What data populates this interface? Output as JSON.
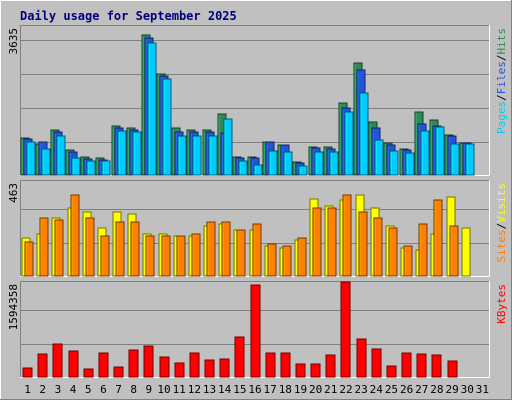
{
  "chart_data": [
    {
      "type": "bar",
      "title": "Daily usage for September 2025",
      "panel": "top",
      "categories": [
        "1",
        "2",
        "3",
        "4",
        "5",
        "6",
        "7",
        "8",
        "9",
        "10",
        "11",
        "12",
        "13",
        "14",
        "15",
        "16",
        "17",
        "18",
        "19",
        "20",
        "21",
        "22",
        "23",
        "24",
        "25",
        "26",
        "27",
        "28",
        "29",
        "30",
        "31"
      ],
      "ymax_label": "3635",
      "ylim": [
        0,
        3635
      ],
      "legend_right": [
        {
          "text": "Pages",
          "color": "#00ccff"
        },
        {
          "text": "Files",
          "color": "#2255dd"
        },
        {
          "text": "Hits",
          "color": "#2e8b57"
        }
      ],
      "series": [
        {
          "name": "Hits",
          "color": "#2e8b57",
          "values": [
            910,
            760,
            1130,
            610,
            450,
            430,
            1220,
            1180,
            3480,
            2520,
            1170,
            1130,
            1130,
            1530,
            450,
            450,
            830,
            740,
            330,
            690,
            690,
            1800,
            2780,
            1330,
            790,
            640,
            1560,
            1370,
            1000,
            790,
            0
          ]
        },
        {
          "name": "Files",
          "color": "#2255dd",
          "values": [
            890,
            810,
            1070,
            580,
            410,
            380,
            1180,
            1130,
            3420,
            2460,
            1070,
            1060,
            1060,
            1040,
            420,
            430,
            820,
            740,
            290,
            670,
            640,
            1670,
            2610,
            1170,
            750,
            620,
            1260,
            1220,
            980,
            790,
            0
          ]
        },
        {
          "name": "Pages",
          "color": "#00ccff",
          "values": [
            830,
            650,
            980,
            420,
            360,
            350,
            1090,
            1070,
            3280,
            2400,
            980,
            980,
            980,
            1400,
            360,
            260,
            590,
            570,
            220,
            580,
            580,
            1580,
            2030,
            870,
            600,
            550,
            1100,
            1200,
            770,
            760,
            0
          ]
        }
      ]
    },
    {
      "type": "bar",
      "panel": "middle",
      "categories": [
        "1",
        "2",
        "3",
        "4",
        "5",
        "6",
        "7",
        "8",
        "9",
        "10",
        "11",
        "12",
        "13",
        "14",
        "15",
        "16",
        "17",
        "18",
        "19",
        "20",
        "21",
        "22",
        "23",
        "24",
        "25",
        "26",
        "27",
        "28",
        "29",
        "30",
        "31"
      ],
      "ymax_label": "463",
      "ylim": [
        0,
        463
      ],
      "legend_right": [
        {
          "text": "Sites",
          "color": "#ff8000"
        },
        {
          "text": "Visits",
          "color": "#ffff00"
        }
      ],
      "series": [
        {
          "name": "Visits",
          "color": "#ffff00",
          "values": [
            190,
            210,
            290,
            340,
            320,
            240,
            320,
            310,
            210,
            210,
            200,
            200,
            250,
            260,
            230,
            230,
            150,
            140,
            180,
            390,
            350,
            380,
            410,
            340,
            250,
            140,
            130,
            210,
            400,
            240,
            0
          ]
        },
        {
          "name": "Sites",
          "color": "#ff8000",
          "values": [
            170,
            290,
            280,
            410,
            290,
            200,
            270,
            270,
            200,
            200,
            200,
            210,
            270,
            270,
            230,
            260,
            160,
            150,
            190,
            340,
            340,
            410,
            320,
            290,
            240,
            150,
            260,
            380,
            250,
            0,
            0
          ]
        }
      ]
    },
    {
      "type": "bar",
      "panel": "bottom",
      "categories": [
        "1",
        "2",
        "3",
        "4",
        "5",
        "6",
        "7",
        "8",
        "9",
        "10",
        "11",
        "12",
        "13",
        "14",
        "15",
        "16",
        "17",
        "18",
        "19",
        "20",
        "21",
        "22",
        "23",
        "24",
        "25",
        "26",
        "27",
        "28",
        "29",
        "30",
        "31"
      ],
      "ymax_label": "1594358",
      "ylim": [
        0,
        1594358
      ],
      "legend_right": [
        {
          "text": "KBytes",
          "color": "#ff0000"
        }
      ],
      "series": [
        {
          "name": "KBytes",
          "color": "#ff0000",
          "values": [
            150000,
            400000,
            580000,
            450000,
            130000,
            420000,
            170000,
            460000,
            530000,
            350000,
            240000,
            410000,
            300000,
            320000,
            700000,
            1600000,
            420000,
            420000,
            230000,
            230000,
            380000,
            1650000,
            660000,
            480000,
            190000,
            420000,
            390000,
            380000,
            270000,
            0,
            0
          ]
        }
      ]
    }
  ],
  "x_axis": {
    "labels": [
      "1",
      "2",
      "3",
      "4",
      "5",
      "6",
      "7",
      "8",
      "9",
      "10",
      "11",
      "12",
      "13",
      "14",
      "15",
      "16",
      "17",
      "18",
      "19",
      "20",
      "21",
      "22",
      "23",
      "24",
      "25",
      "26",
      "27",
      "28",
      "29",
      "30",
      "31"
    ],
    "weekend_days": [
      "6",
      "7",
      "13",
      "14",
      "20",
      "21",
      "27",
      "28"
    ],
    "weekday_color": "#000000",
    "weekend_color": "#2e8b57"
  }
}
